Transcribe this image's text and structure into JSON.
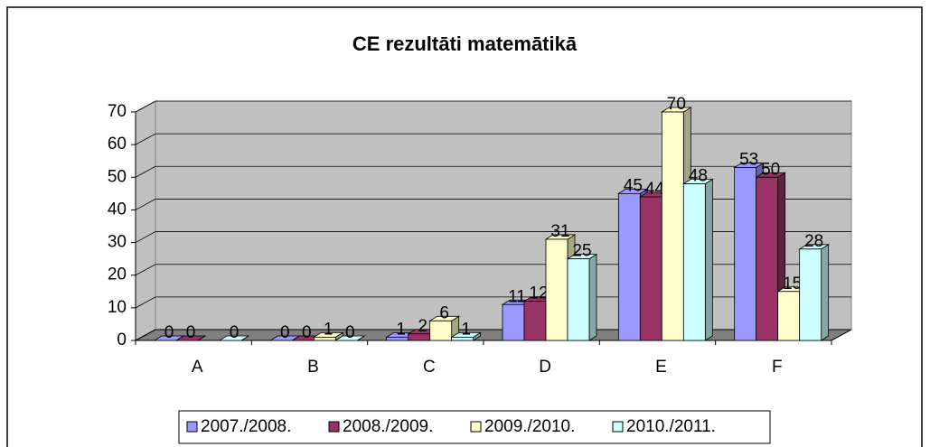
{
  "chart_data": {
    "type": "bar3d",
    "title": "CE rezultāti matemātikā",
    "categories": [
      "A",
      "B",
      "C",
      "D",
      "E",
      "F"
    ],
    "series": [
      {
        "name": "2007./2008.",
        "color": "#9999ff",
        "values": [
          0,
          0,
          1,
          11,
          45,
          53
        ]
      },
      {
        "name": "2008./2009.",
        "color": "#993366",
        "values": [
          0,
          0,
          2,
          12,
          44,
          50
        ]
      },
      {
        "name": "2009./2010.",
        "color": "#ffffcc",
        "values": [
          null,
          1,
          6,
          31,
          70,
          15
        ]
      },
      {
        "name": "2010./2011.",
        "color": "#ccffff",
        "values": [
          0,
          0,
          1,
          25,
          48,
          28
        ]
      }
    ],
    "ylim": [
      0,
      70
    ],
    "yticks": [
      0,
      10,
      20,
      30,
      40,
      50,
      60,
      70
    ],
    "grid": true,
    "legend": "bottom"
  }
}
